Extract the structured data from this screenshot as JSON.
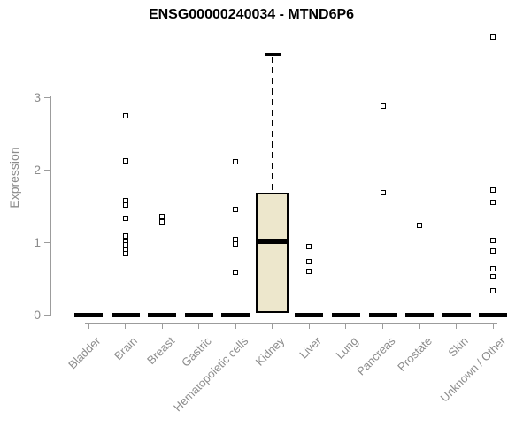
{
  "chart_data": {
    "type": "boxplot",
    "title": "ENSG00000240034 - MTND6P6",
    "ylabel": "Expression",
    "xlabel": "",
    "yticks": [
      0,
      1,
      2,
      3
    ],
    "ylim": [
      0,
      3.9
    ],
    "grid": false,
    "legend": false,
    "categories": [
      "Bladder",
      "Brain",
      "Breast",
      "Gastric",
      "Hematopoietic cells",
      "Kidney",
      "Liver",
      "Lung",
      "Pancreas",
      "Prostate",
      "Skin",
      "Unknown / Other"
    ],
    "boxes": [
      {
        "category": "Bladder",
        "q1": 0,
        "median": 0,
        "q3": 0,
        "whisker_low": 0,
        "whisker_high": 0,
        "outliers": []
      },
      {
        "category": "Brain",
        "q1": 0,
        "median": 0,
        "q3": 0,
        "whisker_low": 0,
        "whisker_high": 0,
        "outliers": [
          2.74,
          2.12,
          1.57,
          1.51,
          1.33,
          1.08,
          1.01,
          0.96,
          0.9,
          0.84
        ]
      },
      {
        "category": "Breast",
        "q1": 0,
        "median": 0,
        "q3": 0,
        "whisker_low": 0,
        "whisker_high": 0,
        "outliers": [
          1.35,
          1.28
        ]
      },
      {
        "category": "Gastric",
        "q1": 0,
        "median": 0,
        "q3": 0,
        "whisker_low": 0,
        "whisker_high": 0,
        "outliers": []
      },
      {
        "category": "Hematopoietic cells",
        "q1": 0,
        "median": 0,
        "q3": 0,
        "whisker_low": 0,
        "whisker_high": 0,
        "outliers": [
          2.11,
          1.45,
          1.04,
          0.97,
          0.59
        ]
      },
      {
        "category": "Kidney",
        "q1": 0.03,
        "median": 1.01,
        "q3": 1.68,
        "whisker_low": 0.03,
        "whisker_high": 3.61,
        "outliers": []
      },
      {
        "category": "Liver",
        "q1": 0,
        "median": 0,
        "q3": 0,
        "whisker_low": 0,
        "whisker_high": 0,
        "outliers": [
          0.94,
          0.73,
          0.6
        ]
      },
      {
        "category": "Lung",
        "q1": 0,
        "median": 0,
        "q3": 0,
        "whisker_low": 0,
        "whisker_high": 0,
        "outliers": []
      },
      {
        "category": "Pancreas",
        "q1": 0,
        "median": 0,
        "q3": 0,
        "whisker_low": 0,
        "whisker_high": 0,
        "outliers": [
          2.88,
          1.68
        ]
      },
      {
        "category": "Prostate",
        "q1": 0,
        "median": 0,
        "q3": 0,
        "whisker_low": 0,
        "whisker_high": 0,
        "outliers": [
          1.23
        ]
      },
      {
        "category": "Skin",
        "q1": 0,
        "median": 0,
        "q3": 0,
        "whisker_low": 0,
        "whisker_high": 0,
        "outliers": []
      },
      {
        "category": "Unknown / Other",
        "q1": 0,
        "median": 0,
        "q3": 0,
        "whisker_low": 0,
        "whisker_high": 0,
        "outliers": [
          3.83,
          1.72,
          1.55,
          1.02,
          0.88,
          0.63,
          0.52,
          0.33
        ]
      }
    ],
    "colors": {
      "box_fill": "#EDE7CC",
      "box_border": "#000000",
      "axis": "#9c9c9c",
      "tick_label": "#8c8c8c",
      "title": "#000000",
      "background": "#ffffff",
      "outlier_fill": "#ffffff"
    }
  }
}
